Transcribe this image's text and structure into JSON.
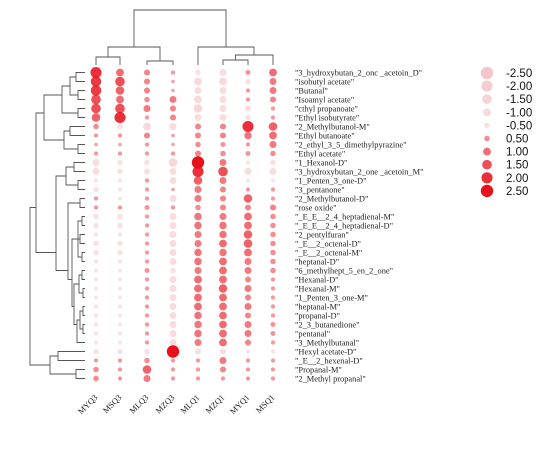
{
  "chart_data": {
    "type": "heatmap",
    "mark": "bubble",
    "title": "",
    "xlabel": "",
    "ylabel": "",
    "columns": [
      "MYQ3",
      "MSQ3",
      "MLQ3",
      "MZQ3",
      "MLQ1",
      "MZQ1",
      "MYQ1",
      "MSQ1"
    ],
    "rows": [
      "\"3_hydroxybutan_2_onc _acetoin_D\"",
      "\"isobutyl acetate\"",
      "\"Butanal\"",
      "\"Isoamyl acetate\"",
      "\"cthyl propanoate\"",
      "\"Ethyl isobutyrate\"",
      "\"2_Methylbutanol-M\"",
      "\"Ethyl butanoate\"",
      "\"2_ethyl_3_5_dimethylpyrazine\"",
      "\"Ethyl acetate\"",
      "\"1_Hexanol-D\"",
      "\"3_hydroxybutan_2_one _acetoin_M\"",
      "\"1_Penten_3_one-D\"",
      "\"3_pentanone\"",
      "\"2_Methylbutanol-D\"",
      "\"rose oxide\"",
      "\"_E_E__2_4_heptadienal-M\"",
      "\"_E_E__2_4_heptadienal-D\"",
      "\"2_pentylfuran\"",
      "\"_E__2_octenal-D\"",
      "\"_E__2_octenal-M\"",
      "\"heptanal-D\"",
      "\"6_methylhept_5_en_2_one\"",
      "\"Hexanal-D\"",
      "\"Hexanal-M\"",
      "\"1_Penten_3_one-M\"",
      "\"heptanal-M\"",
      "\"propanal-D\"",
      "\"2_3_butanedione\"",
      "\"pentanal\"",
      "\"3_Methylbutanal\"",
      "\"Hexyl acetate-D\"",
      "\"_E__2_hexenal-D\"",
      "\"Propanal-M\"",
      "\"2_Methyl propanal\""
    ],
    "values": [
      [
        2.0,
        1.0,
        0.6,
        0.3,
        -0.5,
        -0.8,
        0.4,
        1.0
      ],
      [
        1.8,
        1.5,
        0.6,
        0.2,
        -1.0,
        -1.0,
        -0.5,
        0.8
      ],
      [
        1.8,
        1.2,
        0.6,
        0.2,
        -0.8,
        -0.8,
        0.3,
        0.8
      ],
      [
        1.5,
        1.0,
        0.5,
        0.8,
        -1.0,
        -0.8,
        0.3,
        0.6
      ],
      [
        1.5,
        1.5,
        0.8,
        0.6,
        -1.2,
        -0.8,
        -0.6,
        0.3
      ],
      [
        1.2,
        2.0,
        0.3,
        0.6,
        -0.8,
        -0.8,
        -0.5,
        0.3
      ],
      [
        0.5,
        -0.5,
        -1.0,
        -0.8,
        0.6,
        0.6,
        2.0,
        1.2
      ],
      [
        0.3,
        0.3,
        0.6,
        0.2,
        0.6,
        0.6,
        0.9,
        1.0
      ],
      [
        0.2,
        0.2,
        0.3,
        0.2,
        0.5,
        0.4,
        0.3,
        0.8
      ],
      [
        0.3,
        0.3,
        0.3,
        0.3,
        0.6,
        0.5,
        0.4,
        0.5
      ],
      [
        -0.8,
        -0.5,
        -0.5,
        -1.2,
        2.5,
        0.8,
        -0.3,
        -0.5
      ],
      [
        -0.8,
        -0.5,
        -0.6,
        -0.8,
        2.0,
        1.5,
        -0.8,
        -0.8
      ],
      [
        -0.3,
        -0.3,
        0.3,
        -0.8,
        1.2,
        0.8,
        -0.3,
        -0.3
      ],
      [
        -0.5,
        -0.3,
        0.3,
        0.2,
        0.8,
        0.6,
        0.3,
        0.3
      ],
      [
        0.3,
        -0.3,
        0.3,
        -0.8,
        0.8,
        0.6,
        1.2,
        0.3
      ],
      [
        0.3,
        0.3,
        0.4,
        0.3,
        0.5,
        0.6,
        0.6,
        0.6
      ],
      [
        -0.5,
        -0.5,
        0.3,
        -0.8,
        0.9,
        0.8,
        1.0,
        0.5
      ],
      [
        -0.5,
        -0.5,
        0.3,
        -0.8,
        0.9,
        0.9,
        1.0,
        0.5
      ],
      [
        -0.3,
        -0.3,
        0.3,
        -0.8,
        0.8,
        0.9,
        1.2,
        0.5
      ],
      [
        -0.5,
        -0.5,
        0.3,
        -0.8,
        0.8,
        1.0,
        1.2,
        0.5
      ],
      [
        -0.5,
        -0.5,
        0.3,
        -0.8,
        0.9,
        0.9,
        1.0,
        0.5
      ],
      [
        -0.3,
        -0.3,
        0.3,
        -0.8,
        0.9,
        1.0,
        0.8,
        0.5
      ],
      [
        -0.3,
        -0.3,
        0.4,
        -0.5,
        0.8,
        1.0,
        0.8,
        0.5
      ],
      [
        -0.3,
        -0.3,
        0.3,
        -0.8,
        1.0,
        1.0,
        0.6,
        0.3
      ],
      [
        -0.3,
        -0.3,
        0.3,
        -0.8,
        1.0,
        1.2,
        0.8,
        0.3
      ],
      [
        -0.3,
        -0.3,
        0.3,
        -0.8,
        1.0,
        1.0,
        0.6,
        0.3
      ],
      [
        -0.3,
        -0.3,
        0.3,
        -0.8,
        1.0,
        1.0,
        0.8,
        0.3
      ],
      [
        -0.3,
        -0.3,
        0.3,
        -0.8,
        0.9,
        1.0,
        0.6,
        0.3
      ],
      [
        -0.3,
        -0.3,
        0.3,
        -0.8,
        0.9,
        1.0,
        0.8,
        0.4
      ],
      [
        -0.3,
        -0.3,
        0.3,
        -0.8,
        0.9,
        1.0,
        0.8,
        0.4
      ],
      [
        -0.3,
        -0.3,
        0.3,
        -0.8,
        0.8,
        1.0,
        0.6,
        0.3
      ],
      [
        -0.5,
        -0.5,
        -0.5,
        2.5,
        -0.6,
        -0.6,
        -0.3,
        -0.3
      ],
      [
        0.3,
        0.3,
        0.5,
        0.3,
        0.3,
        0.8,
        0.3,
        0.3
      ],
      [
        0.5,
        0.3,
        1.2,
        0.3,
        0.3,
        0.6,
        0.3,
        0.3
      ],
      [
        0.5,
        0.3,
        0.8,
        0.3,
        0.3,
        0.3,
        0.3,
        0.3
      ]
    ],
    "legend": {
      "placement": "right",
      "levels": [
        -2.5,
        -2.0,
        -1.5,
        -1.0,
        -0.5,
        0.5,
        1.0,
        1.5,
        2.0,
        2.5
      ],
      "labels": [
        "-2.50",
        "-2.00",
        "-1.50",
        "-1.00",
        "-0.50",
        "0.50",
        "1.00",
        "1.50",
        "2.00",
        "2.50"
      ]
    },
    "colors": {
      "positive": "#e8101a",
      "negative": "#f2b8bc"
    },
    "column_dendrogram": true,
    "row_dendrogram": true
  }
}
